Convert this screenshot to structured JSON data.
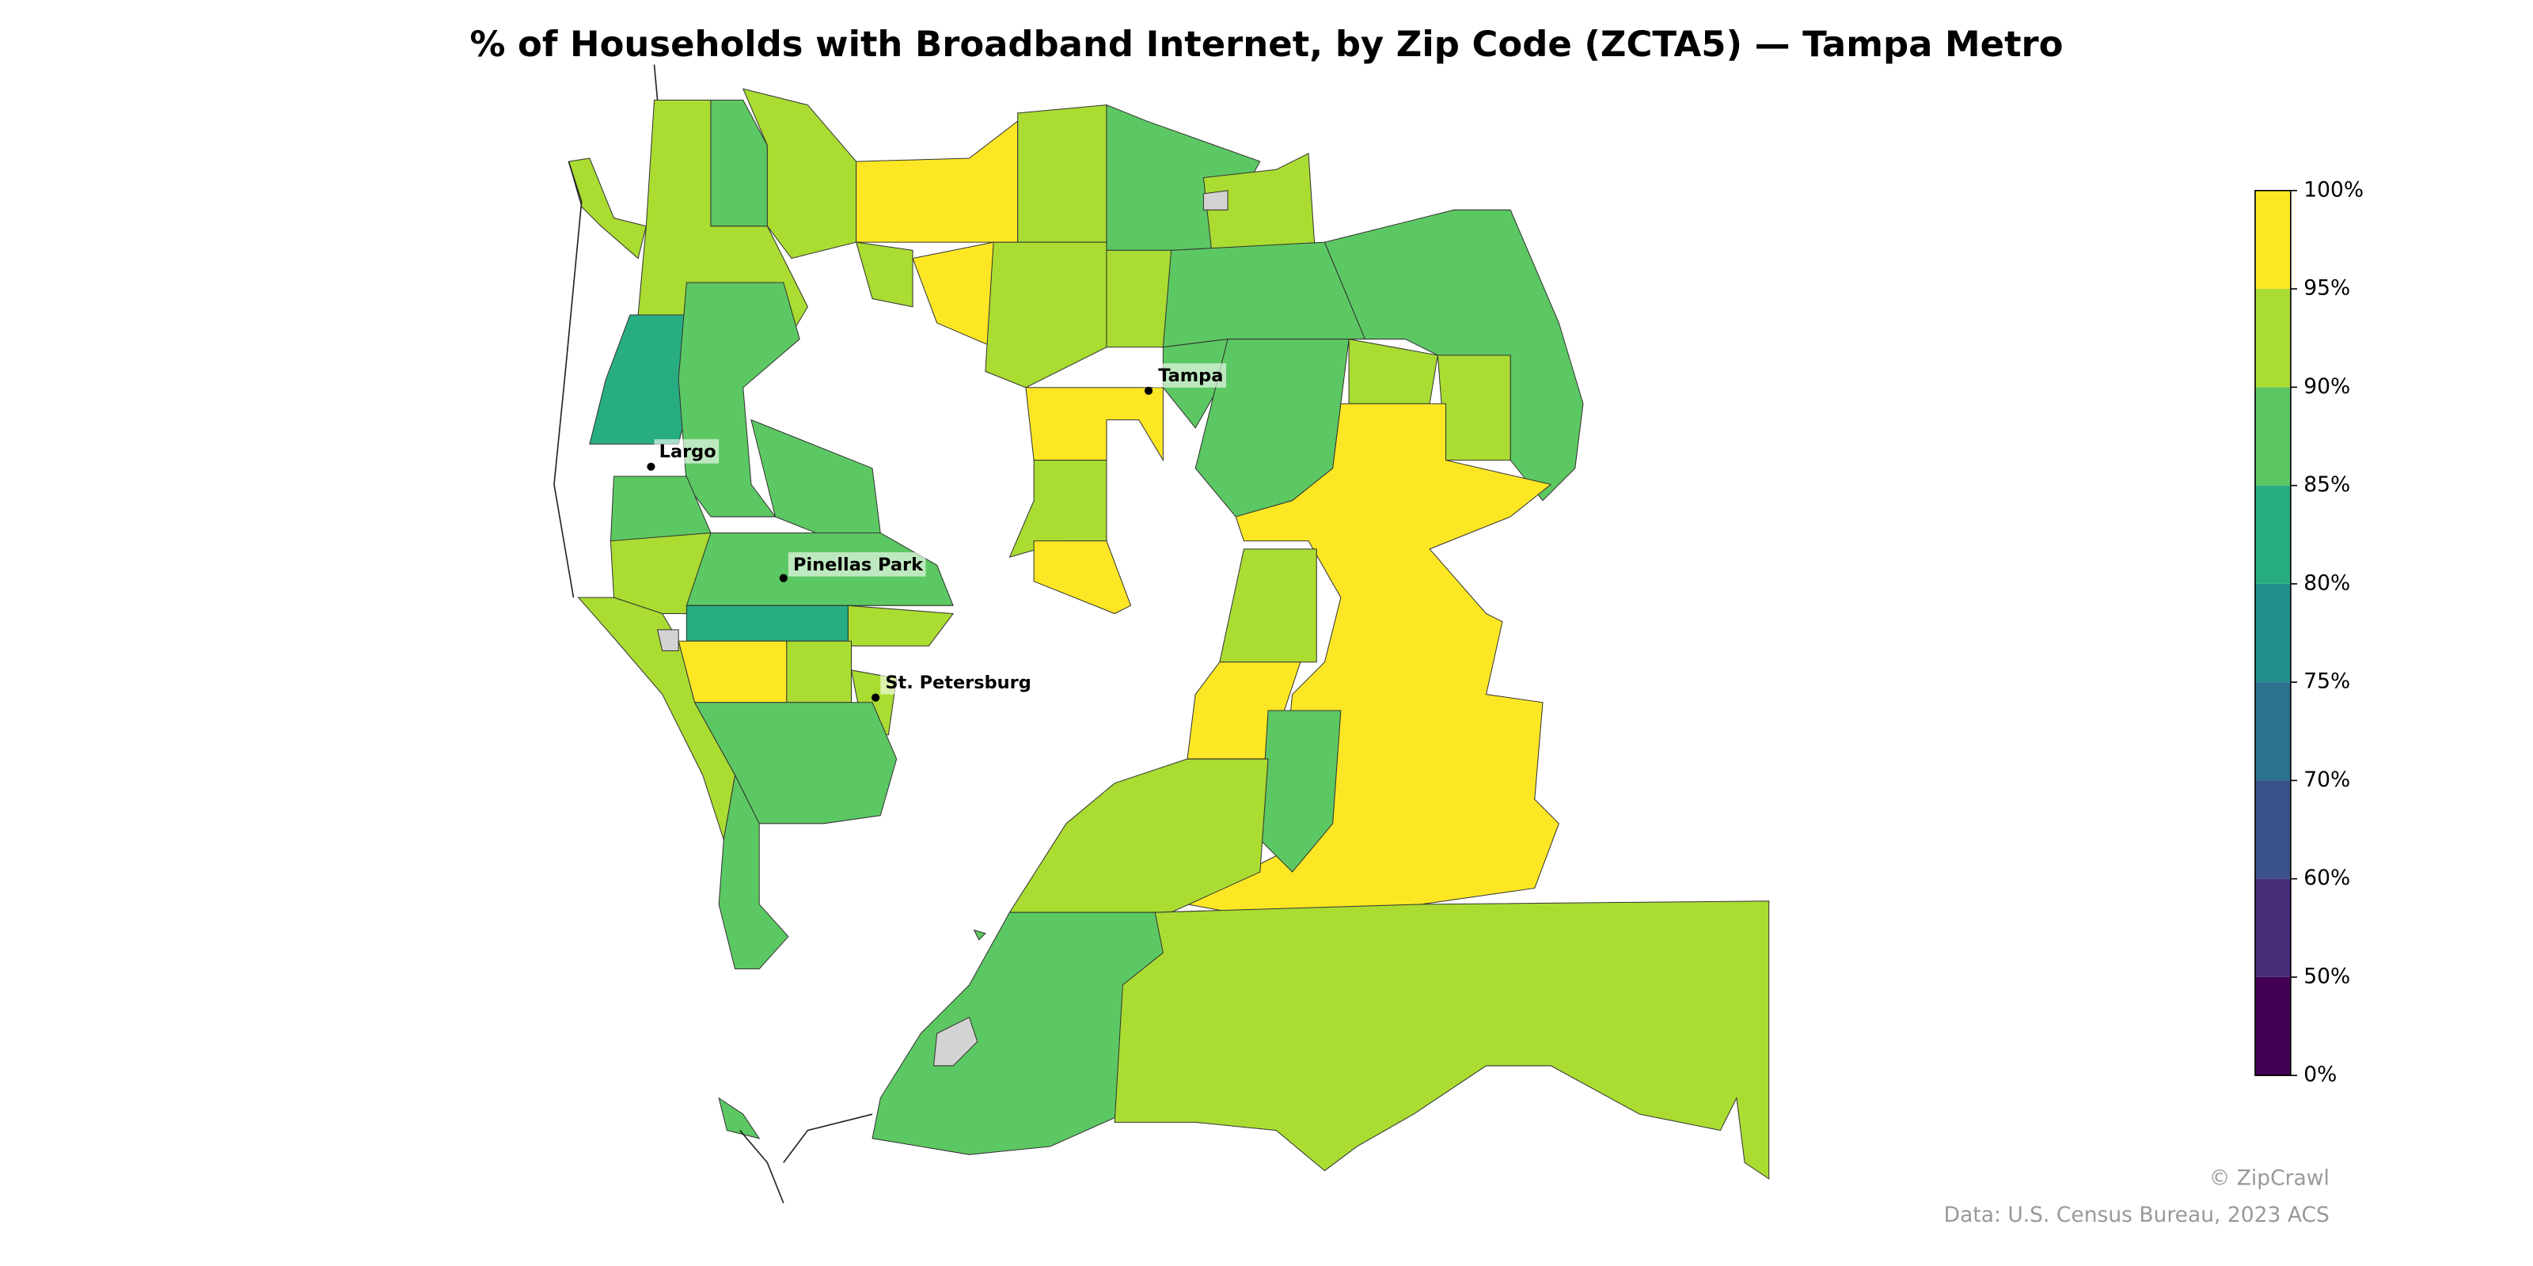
{
  "chart_data": {
    "type": "choropleth",
    "title": "% of Households with Broadband Internet, by Zip Code (ZCTA5) — Tampa Metro",
    "cities": [
      "Tampa",
      "Largo",
      "Pinellas Park",
      "St. Petersburg"
    ],
    "colorbar": {
      "ticks": [
        {
          "value": 0,
          "label": "0%"
        },
        {
          "value": 50,
          "label": "50%"
        },
        {
          "value": 60,
          "label": "60%"
        },
        {
          "value": 70,
          "label": "70%"
        },
        {
          "value": 75,
          "label": "75%"
        },
        {
          "value": 80,
          "label": "80%"
        },
        {
          "value": 85,
          "label": "85%"
        },
        {
          "value": 90,
          "label": "90%"
        },
        {
          "value": 95,
          "label": "95%"
        },
        {
          "value": 100,
          "label": "100%"
        }
      ],
      "colors": [
        "#440154",
        "#472c7a",
        "#3b518b",
        "#2c718e",
        "#21908d",
        "#27ad81",
        "#5cc863",
        "#aadc32",
        "#fde725"
      ]
    },
    "credits": [
      "© ZipCrawl",
      "Data: U.S. Census Bureau, 2023 ACS"
    ]
  }
}
